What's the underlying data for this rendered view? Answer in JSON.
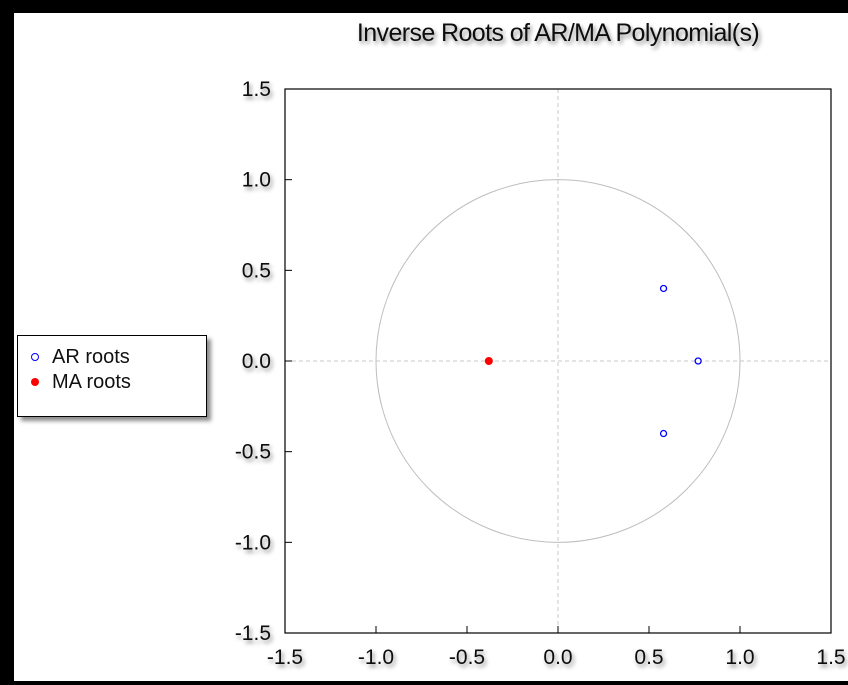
{
  "chart_data": {
    "type": "scatter",
    "title": "Inverse Roots of AR/MA Polynomial(s)",
    "xlabel": "",
    "ylabel": "",
    "xlim": [
      -1.5,
      1.5
    ],
    "ylim": [
      -1.5,
      1.5
    ],
    "x_ticks": [
      "-1.5",
      "-1.0",
      "-0.5",
      "0.0",
      "0.5",
      "1.0",
      "1.5"
    ],
    "y_ticks": [
      "1.5",
      "1.0",
      "0.5",
      "0.0",
      "-0.5",
      "-1.0",
      "-1.5"
    ],
    "unit_circle_radius": 1,
    "grid": false,
    "legend_position": "left",
    "series": [
      {
        "name": "AR roots",
        "marker": "open-circle",
        "color": "#0000ff",
        "points": [
          [
            0.58,
            0.4
          ],
          [
            0.77,
            0.0
          ],
          [
            0.58,
            -0.4
          ]
        ]
      },
      {
        "name": "MA roots",
        "marker": "filled-circle",
        "color": "#ff0000",
        "points": [
          [
            -0.38,
            0.0
          ]
        ]
      }
    ]
  }
}
